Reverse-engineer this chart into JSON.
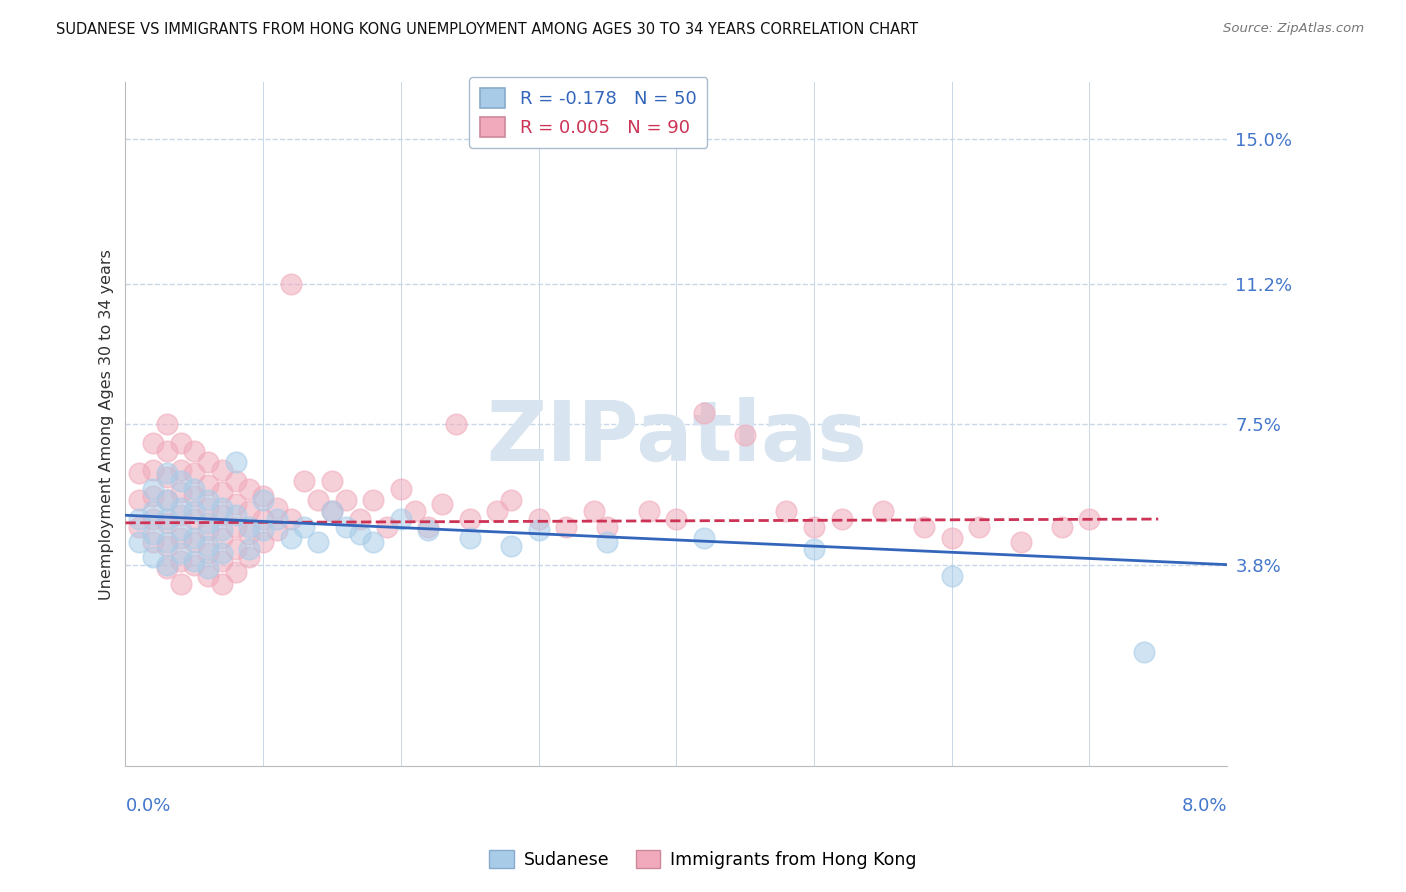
{
  "title": "SUDANESE VS IMMIGRANTS FROM HONG KONG UNEMPLOYMENT AMONG AGES 30 TO 34 YEARS CORRELATION CHART",
  "source": "Source: ZipAtlas.com",
  "legend_blue_label": "R = -0.178   N = 50",
  "legend_pink_label": "R = 0.005   N = 90",
  "xmin": 0.0,
  "xmax": 0.08,
  "ymin": -0.015,
  "ymax": 0.165,
  "ytick_positions": [
    0.0,
    0.038,
    0.075,
    0.112,
    0.15
  ],
  "ytick_labels": [
    "",
    "3.8%",
    "7.5%",
    "11.2%",
    "15.0%"
  ],
  "blue_color": "#a8cce8",
  "pink_color": "#f0aabb",
  "blue_line_color": "#3366bb",
  "pink_line_color": "#cc3355",
  "watermark_text": "ZIPatlas",
  "watermark_color": "#d8e4ef",
  "blue_trend_x": [
    0.0,
    0.08
  ],
  "blue_trend_y": [
    0.051,
    0.038
  ],
  "pink_trend_x": [
    0.0,
    0.075
  ],
  "pink_trend_y": [
    0.049,
    0.05
  ],
  "blue_scatter": [
    [
      0.001,
      0.05
    ],
    [
      0.001,
      0.044
    ],
    [
      0.002,
      0.058
    ],
    [
      0.002,
      0.052
    ],
    [
      0.002,
      0.046
    ],
    [
      0.002,
      0.04
    ],
    [
      0.003,
      0.062
    ],
    [
      0.003,
      0.055
    ],
    [
      0.003,
      0.05
    ],
    [
      0.003,
      0.044
    ],
    [
      0.003,
      0.038
    ],
    [
      0.004,
      0.06
    ],
    [
      0.004,
      0.053
    ],
    [
      0.004,
      0.047
    ],
    [
      0.004,
      0.041
    ],
    [
      0.005,
      0.058
    ],
    [
      0.005,
      0.052
    ],
    [
      0.005,
      0.045
    ],
    [
      0.005,
      0.039
    ],
    [
      0.006,
      0.055
    ],
    [
      0.006,
      0.049
    ],
    [
      0.006,
      0.043
    ],
    [
      0.006,
      0.037
    ],
    [
      0.007,
      0.053
    ],
    [
      0.007,
      0.047
    ],
    [
      0.007,
      0.041
    ],
    [
      0.008,
      0.065
    ],
    [
      0.008,
      0.051
    ],
    [
      0.009,
      0.048
    ],
    [
      0.009,
      0.042
    ],
    [
      0.01,
      0.055
    ],
    [
      0.01,
      0.047
    ],
    [
      0.011,
      0.05
    ],
    [
      0.012,
      0.045
    ],
    [
      0.013,
      0.048
    ],
    [
      0.014,
      0.044
    ],
    [
      0.015,
      0.052
    ],
    [
      0.016,
      0.048
    ],
    [
      0.017,
      0.046
    ],
    [
      0.018,
      0.044
    ],
    [
      0.02,
      0.05
    ],
    [
      0.022,
      0.047
    ],
    [
      0.025,
      0.045
    ],
    [
      0.028,
      0.043
    ],
    [
      0.03,
      0.047
    ],
    [
      0.035,
      0.044
    ],
    [
      0.042,
      0.045
    ],
    [
      0.05,
      0.042
    ],
    [
      0.06,
      0.035
    ],
    [
      0.074,
      0.015
    ]
  ],
  "pink_scatter": [
    [
      0.001,
      0.062
    ],
    [
      0.001,
      0.055
    ],
    [
      0.001,
      0.048
    ],
    [
      0.002,
      0.07
    ],
    [
      0.002,
      0.063
    ],
    [
      0.002,
      0.056
    ],
    [
      0.002,
      0.05
    ],
    [
      0.002,
      0.044
    ],
    [
      0.003,
      0.075
    ],
    [
      0.003,
      0.068
    ],
    [
      0.003,
      0.061
    ],
    [
      0.003,
      0.055
    ],
    [
      0.003,
      0.049
    ],
    [
      0.003,
      0.043
    ],
    [
      0.003,
      0.037
    ],
    [
      0.004,
      0.07
    ],
    [
      0.004,
      0.063
    ],
    [
      0.004,
      0.057
    ],
    [
      0.004,
      0.051
    ],
    [
      0.004,
      0.045
    ],
    [
      0.004,
      0.039
    ],
    [
      0.004,
      0.033
    ],
    [
      0.005,
      0.068
    ],
    [
      0.005,
      0.062
    ],
    [
      0.005,
      0.056
    ],
    [
      0.005,
      0.05
    ],
    [
      0.005,
      0.044
    ],
    [
      0.005,
      0.038
    ],
    [
      0.006,
      0.065
    ],
    [
      0.006,
      0.059
    ],
    [
      0.006,
      0.053
    ],
    [
      0.006,
      0.047
    ],
    [
      0.006,
      0.041
    ],
    [
      0.006,
      0.035
    ],
    [
      0.007,
      0.063
    ],
    [
      0.007,
      0.057
    ],
    [
      0.007,
      0.051
    ],
    [
      0.007,
      0.045
    ],
    [
      0.007,
      0.039
    ],
    [
      0.007,
      0.033
    ],
    [
      0.008,
      0.06
    ],
    [
      0.008,
      0.054
    ],
    [
      0.008,
      0.048
    ],
    [
      0.008,
      0.042
    ],
    [
      0.008,
      0.036
    ],
    [
      0.009,
      0.058
    ],
    [
      0.009,
      0.052
    ],
    [
      0.009,
      0.046
    ],
    [
      0.009,
      0.04
    ],
    [
      0.01,
      0.056
    ],
    [
      0.01,
      0.05
    ],
    [
      0.01,
      0.044
    ],
    [
      0.011,
      0.053
    ],
    [
      0.011,
      0.047
    ],
    [
      0.012,
      0.112
    ],
    [
      0.012,
      0.05
    ],
    [
      0.013,
      0.06
    ],
    [
      0.014,
      0.055
    ],
    [
      0.015,
      0.06
    ],
    [
      0.015,
      0.052
    ],
    [
      0.016,
      0.055
    ],
    [
      0.017,
      0.05
    ],
    [
      0.018,
      0.055
    ],
    [
      0.019,
      0.048
    ],
    [
      0.02,
      0.058
    ],
    [
      0.021,
      0.052
    ],
    [
      0.022,
      0.048
    ],
    [
      0.023,
      0.054
    ],
    [
      0.024,
      0.075
    ],
    [
      0.025,
      0.05
    ],
    [
      0.027,
      0.052
    ],
    [
      0.028,
      0.055
    ],
    [
      0.03,
      0.05
    ],
    [
      0.032,
      0.048
    ],
    [
      0.034,
      0.052
    ],
    [
      0.035,
      0.048
    ],
    [
      0.038,
      0.052
    ],
    [
      0.04,
      0.05
    ],
    [
      0.042,
      0.078
    ],
    [
      0.045,
      0.072
    ],
    [
      0.048,
      0.052
    ],
    [
      0.05,
      0.048
    ],
    [
      0.052,
      0.05
    ],
    [
      0.055,
      0.052
    ],
    [
      0.058,
      0.048
    ],
    [
      0.06,
      0.045
    ],
    [
      0.062,
      0.048
    ],
    [
      0.065,
      0.044
    ],
    [
      0.068,
      0.048
    ],
    [
      0.07,
      0.05
    ]
  ]
}
